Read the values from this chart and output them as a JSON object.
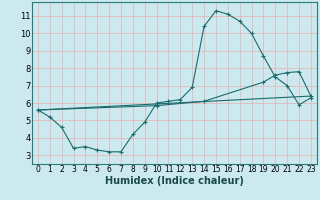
{
  "xlabel": "Humidex (Indice chaleur)",
  "xlim": [
    -0.5,
    23.5
  ],
  "ylim": [
    2.5,
    11.8
  ],
  "yticks": [
    3,
    4,
    5,
    6,
    7,
    8,
    9,
    10,
    11
  ],
  "xticks": [
    0,
    1,
    2,
    3,
    4,
    5,
    6,
    7,
    8,
    9,
    10,
    11,
    12,
    13,
    14,
    15,
    16,
    17,
    18,
    19,
    20,
    21,
    22,
    23
  ],
  "bg_color": "#cde9f0",
  "grid_color": "#e8b0b0",
  "line_color": "#1a6b6b",
  "line1_x": [
    0,
    1,
    2,
    3,
    4,
    5,
    6,
    7,
    8,
    9,
    10,
    11,
    12,
    13,
    14,
    15,
    16,
    17,
    18,
    19,
    20,
    21,
    22,
    23
  ],
  "line1_y": [
    5.6,
    5.2,
    4.6,
    3.4,
    3.5,
    3.3,
    3.2,
    3.2,
    4.2,
    4.9,
    6.0,
    6.1,
    6.2,
    6.9,
    10.4,
    11.3,
    11.1,
    10.7,
    10.0,
    8.7,
    7.5,
    7.0,
    5.9,
    6.3
  ],
  "line2_x": [
    0,
    23
  ],
  "line2_y": [
    5.6,
    6.4
  ],
  "line3_x": [
    0,
    10,
    14,
    19,
    20,
    21,
    22,
    23
  ],
  "line3_y": [
    5.6,
    5.85,
    6.1,
    7.2,
    7.6,
    7.75,
    7.8,
    6.4
  ],
  "title_fontsize": 7,
  "axis_fontsize": 7,
  "tick_fontsize": 6
}
